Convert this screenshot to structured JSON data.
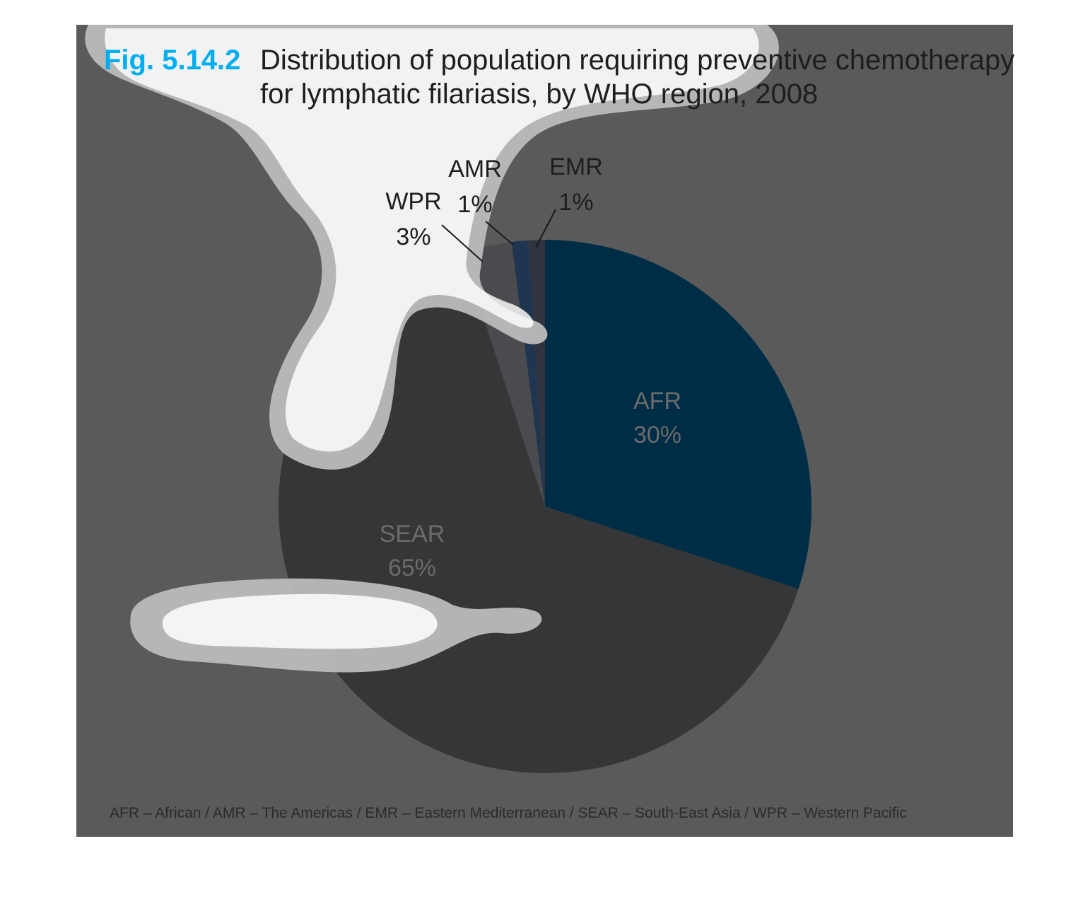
{
  "figure": {
    "number": "Fig. 5.14.2",
    "title_line1": "Distribution of population requiring preventive chemotherapy",
    "title_line2": "for lymphatic filariasis, by WHO region, 2008"
  },
  "footnote": "AFR – African / AMR – The Americas / EMR – Eastern Mediterranean / SEAR – South-East Asia / WPR – Western Pacific",
  "colors": {
    "accent": "#00aeef",
    "background_panel": "#5a5a5a",
    "AFR": "#002d46",
    "SEAR": "#353638",
    "WPR": "#4a4b4e",
    "AMR": "#1f3550",
    "EMR": "#2f3440",
    "callout_line": "#1a1a1a",
    "inner_label": "#6b6b6b"
  },
  "chart_data": {
    "type": "pie",
    "title": "Distribution of population requiring preventive chemotherapy for lymphatic filariasis, by WHO region, 2008",
    "start_angle_deg": 0,
    "direction": "clockwise",
    "slices": [
      {
        "category": "AFR",
        "value": 30,
        "label": "30%"
      },
      {
        "category": "SEAR",
        "value": 65,
        "label": "65%"
      },
      {
        "category": "WPR",
        "value": 3,
        "label": "3%"
      },
      {
        "category": "AMR",
        "value": 1,
        "label": "1%"
      },
      {
        "category": "EMR",
        "value": 1,
        "label": "1%"
      }
    ]
  }
}
